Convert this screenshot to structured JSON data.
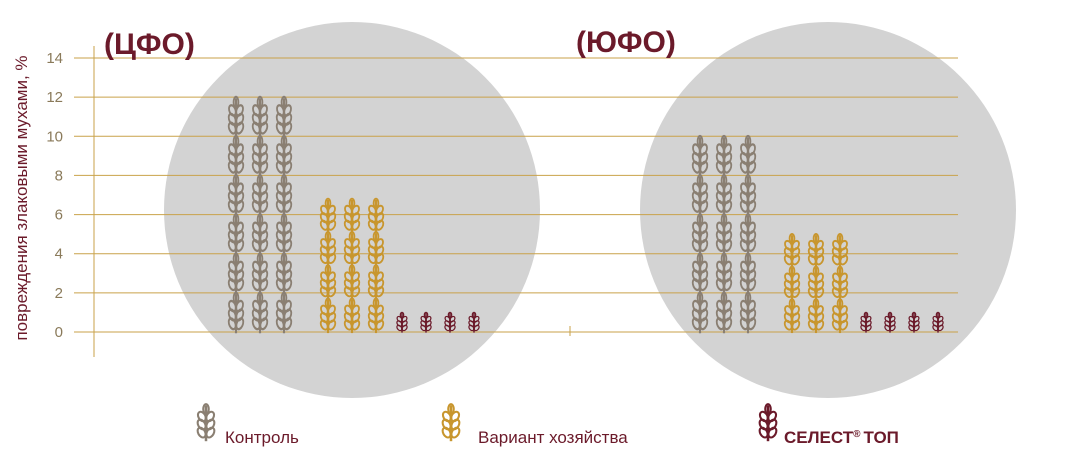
{
  "chart_data": {
    "type": "bar",
    "ylabel": "повреждения злаковыми мухами, %",
    "ylim": [
      0,
      14
    ],
    "yticks": [
      "0",
      "2",
      "4",
      "6",
      "8",
      "10",
      "12",
      "14"
    ],
    "grid": true,
    "legend_position": "bottom",
    "groups": [
      {
        "label": "(ЦФО)",
        "values": [
          12,
          6.8,
          1.0
        ]
      },
      {
        "label": "(ЮФО)",
        "values": [
          10,
          5.0,
          1.0
        ]
      }
    ],
    "series": [
      {
        "name": "Контроль",
        "color": "#8a7f72"
      },
      {
        "name": "Вариант хозяйства",
        "color": "#c8962e"
      },
      {
        "name": "СЕЛЕСТ",
        "name_suffix": "ТОП",
        "registered_mark": "®",
        "color": "#6b1a2a"
      }
    ]
  }
}
